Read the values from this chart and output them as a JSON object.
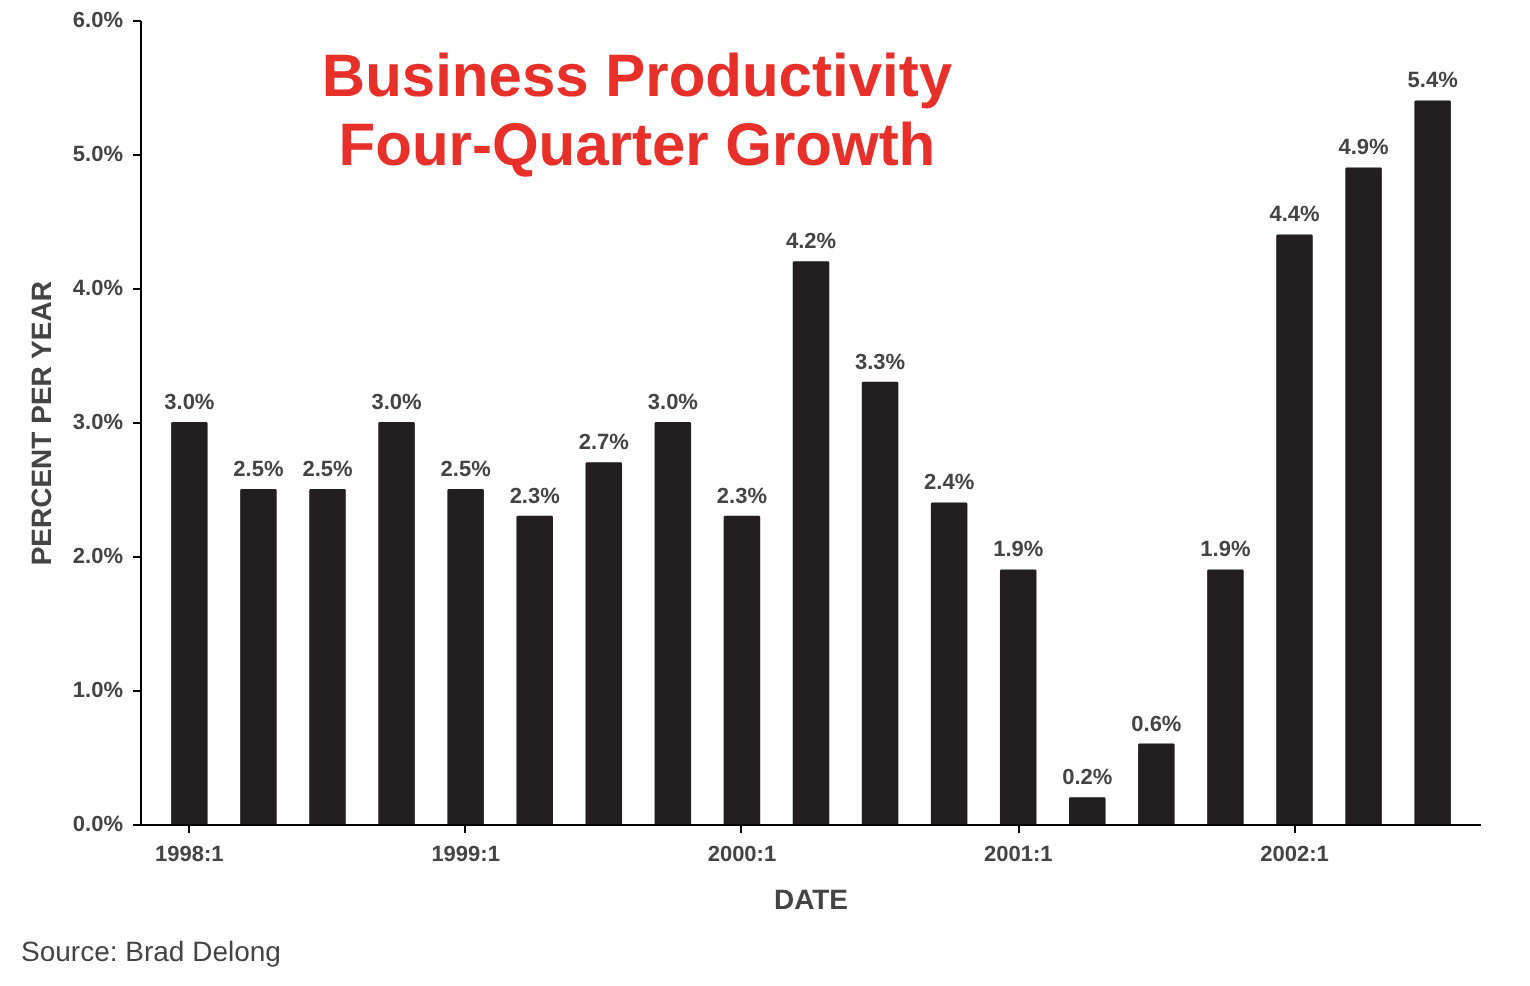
{
  "chart_data": {
    "type": "bar",
    "title": "Business Productivity\nFour-Quarter Growth",
    "xlabel": "DATE",
    "ylabel": "PERCENT PER YEAR",
    "categories": [
      "1998:1",
      null,
      null,
      null,
      "1999:1",
      null,
      null,
      null,
      "2000:1",
      null,
      null,
      null,
      "2001:1",
      null,
      null,
      null,
      "2002:1",
      null,
      null
    ],
    "values": [
      3.0,
      2.5,
      2.5,
      3.0,
      2.5,
      2.3,
      2.7,
      3.0,
      2.3,
      4.2,
      3.3,
      2.4,
      1.9,
      0.2,
      0.6,
      1.9,
      4.4,
      4.9,
      5.4
    ],
    "value_labels": [
      "3.0%",
      "2.5%",
      "2.5%",
      "3.0%",
      "2.5%",
      "2.3%",
      "2.7%",
      "3.0%",
      "2.3%",
      "4.2%",
      "3.3%",
      "2.4%",
      "1.9%",
      "0.2%",
      "0.6%",
      "1.9%",
      "4.4%",
      "4.9%",
      "5.4%"
    ],
    "color": "#231f20",
    "ylim": [
      0,
      6
    ],
    "yticks": [
      {
        "value": 0,
        "label": "0.0%"
      },
      {
        "value": 1,
        "label": "1.0%"
      },
      {
        "value": 2,
        "label": "2.0%"
      },
      {
        "value": 3,
        "label": "3.0%"
      },
      {
        "value": 4,
        "label": "4.0%"
      },
      {
        "value": 5,
        "label": "5.0%"
      },
      {
        "value": 6,
        "label": "6.0%"
      }
    ],
    "grid": false,
    "annotations": [
      "Source: Brad Delong"
    ]
  }
}
